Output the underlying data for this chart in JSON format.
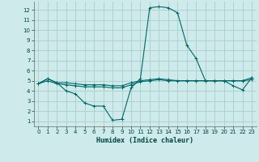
{
  "xlabel": "Humidex (Indice chaleur)",
  "background_color": "#ceeaea",
  "grid_color": "#aacece",
  "line_color": "#006868",
  "x_ticks": [
    0,
    1,
    2,
    3,
    4,
    5,
    6,
    7,
    8,
    9,
    10,
    11,
    12,
    13,
    14,
    15,
    16,
    17,
    18,
    19,
    20,
    21,
    22,
    23
  ],
  "y_ticks": [
    1,
    2,
    3,
    4,
    5,
    6,
    7,
    8,
    9,
    10,
    11,
    12
  ],
  "ylim": [
    0.5,
    12.8
  ],
  "xlim": [
    -0.5,
    23.5
  ],
  "series": [
    {
      "x": [
        0,
        1,
        2,
        3,
        4,
        5,
        6,
        7,
        8,
        9,
        10,
        11,
        12,
        13,
        14,
        15,
        16,
        17,
        18,
        19,
        20,
        21,
        22,
        23
      ],
      "y": [
        4.7,
        5.2,
        4.8,
        4.8,
        4.7,
        4.6,
        4.6,
        4.6,
        4.5,
        4.5,
        4.8,
        5.0,
        5.1,
        5.2,
        5.1,
        5.0,
        5.0,
        5.0,
        5.0,
        5.0,
        5.0,
        5.0,
        5.0,
        5.3
      ]
    },
    {
      "x": [
        0,
        1,
        2,
        3,
        4,
        5,
        6,
        7,
        8,
        9,
        10,
        11,
        12,
        13,
        14,
        15,
        16,
        17,
        18,
        19,
        20,
        21,
        22,
        23
      ],
      "y": [
        4.7,
        5.0,
        4.7,
        4.6,
        4.5,
        4.4,
        4.4,
        4.4,
        4.3,
        4.3,
        4.6,
        4.9,
        5.0,
        5.1,
        5.0,
        5.0,
        5.0,
        5.0,
        5.0,
        5.0,
        5.0,
        5.0,
        5.0,
        5.1
      ]
    },
    {
      "x": [
        0,
        1,
        2,
        3,
        4,
        5,
        6,
        7,
        8,
        9,
        10,
        11,
        12,
        13,
        14,
        15,
        16,
        17,
        18,
        19,
        20,
        21,
        22,
        23
      ],
      "y": [
        4.7,
        5.2,
        4.8,
        4.0,
        3.7,
        2.8,
        2.5,
        2.5,
        1.1,
        1.2,
        4.3,
        5.2,
        12.2,
        12.3,
        12.2,
        11.7,
        8.5,
        7.2,
        5.0,
        5.0,
        5.0,
        4.5,
        4.1,
        5.3
      ]
    }
  ]
}
